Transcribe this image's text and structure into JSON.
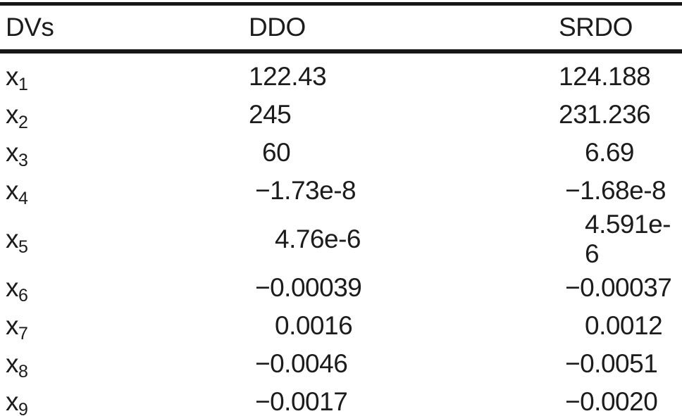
{
  "table": {
    "columns": [
      {
        "label": "DVs"
      },
      {
        "label": "DDO"
      },
      {
        "label": "SRDO"
      }
    ],
    "rows": [
      {
        "dv": "x",
        "sub": "1",
        "ddo": "122.43",
        "srdo": "124.188"
      },
      {
        "dv": "x",
        "sub": "2",
        "ddo": "245",
        "srdo": "231.236"
      },
      {
        "dv": "x",
        "sub": "3",
        "ddo": "60",
        "srdo": "6.69"
      },
      {
        "dv": "x",
        "sub": "4",
        "ddo": "−1.73e-8",
        "srdo": "−1.68e-8"
      },
      {
        "dv": "x",
        "sub": "5",
        "ddo": "4.76e-6",
        "srdo": "4.591e-6"
      },
      {
        "dv": "x",
        "sub": "6",
        "ddo": "−0.00039",
        "srdo": "−0.00037"
      },
      {
        "dv": "x",
        "sub": "7",
        "ddo": "0.0016",
        "srdo": "0.0012"
      },
      {
        "dv": "x",
        "sub": "8",
        "ddo": "−0.0046",
        "srdo": "−0.0051"
      },
      {
        "dv": "x",
        "sub": "9",
        "ddo": "−0.0017",
        "srdo": "−0.0020"
      }
    ]
  }
}
